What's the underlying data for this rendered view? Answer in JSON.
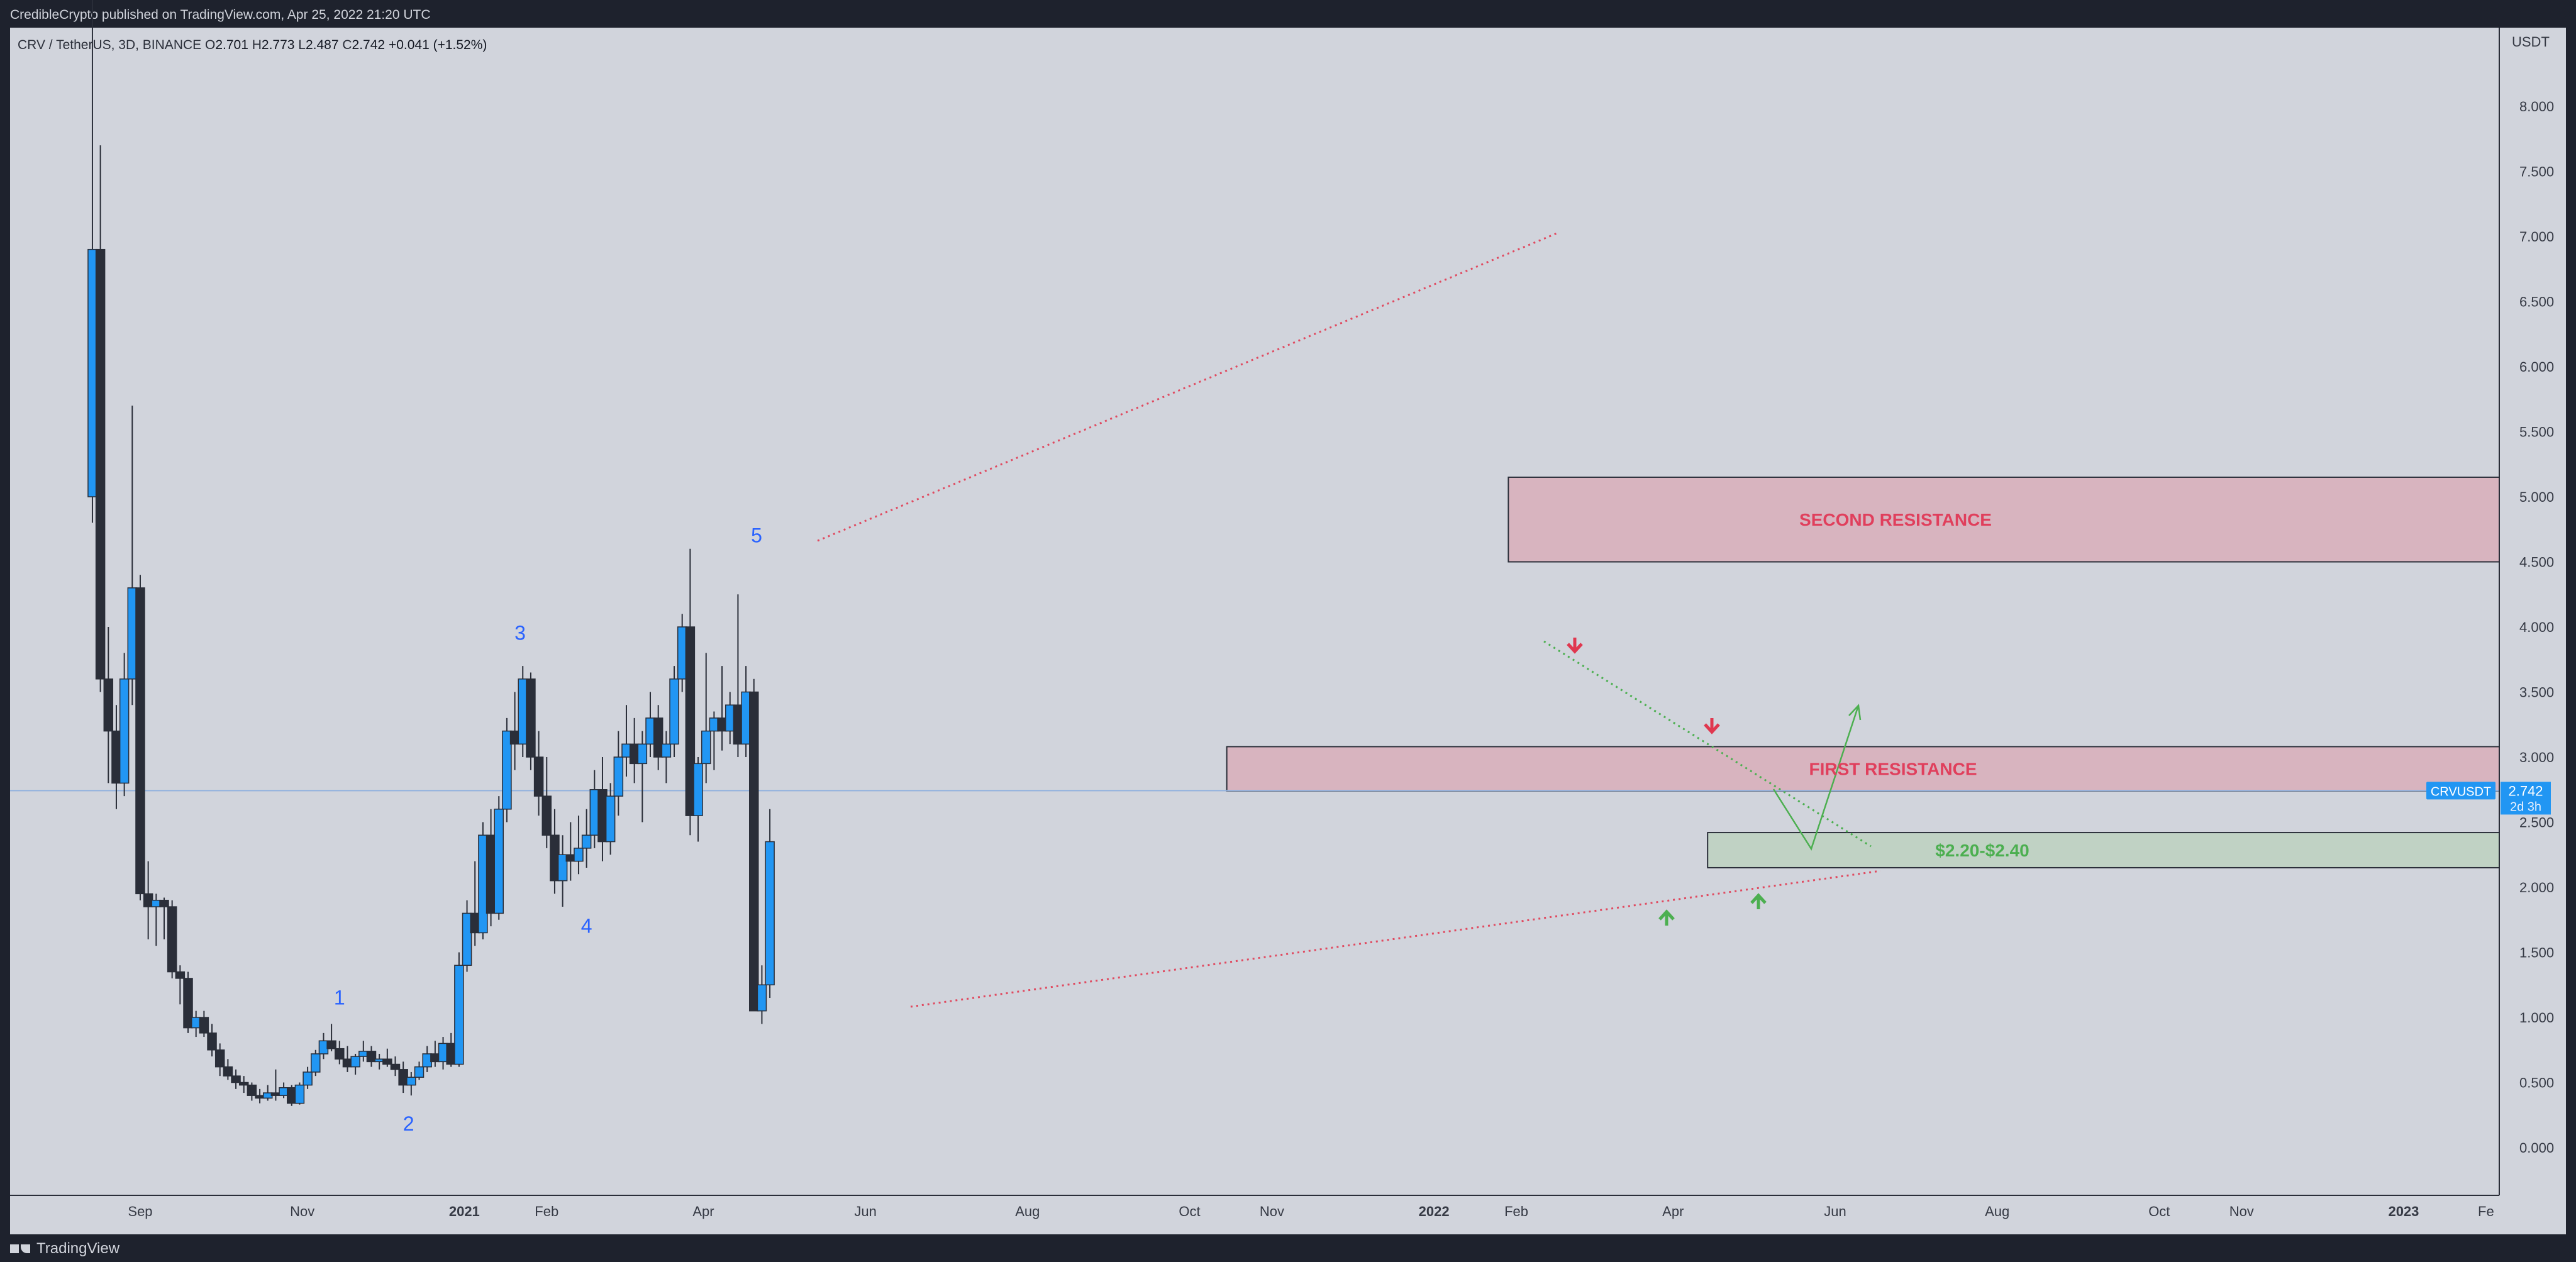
{
  "header": {
    "published_by": "CredibleCrypto published on TradingView.com, Apr 25, 2022 21:20 UTC"
  },
  "legend": {
    "symbol": "CRV / TetherUS, 3D, BINANCE",
    "o_label": "O",
    "o_value": "2.701",
    "h_label": "H",
    "h_value": "2.773",
    "l_label": "L",
    "l_value": "2.487",
    "c_label": "C",
    "c_value": "2.742",
    "change": "+0.041 (+1.52%)"
  },
  "price_scale": {
    "currency": "USDT",
    "ticker": "CRVUSDT",
    "last_price": "2.742",
    "countdown": "2d 3h"
  },
  "footer": {
    "brand": "TradingView"
  },
  "chart_data": {
    "type": "candlestick",
    "symbol": "CRVUSDT",
    "interval": "3D",
    "exchange": "BINANCE",
    "y_ticks": [
      "0.000",
      "0.500",
      "1.000",
      "1.500",
      "2.000",
      "2.500",
      "3.000",
      "3.500",
      "4.000",
      "4.500",
      "5.000",
      "5.500",
      "6.000",
      "6.500",
      "7.000",
      "7.500",
      "8.000"
    ],
    "ylim": [
      -0.6,
      9.0
    ],
    "x_ticks": [
      {
        "label": "Sep",
        "date": "2020-09-01",
        "bold": false
      },
      {
        "label": "Nov",
        "date": "2020-11-01",
        "bold": false
      },
      {
        "label": "2021",
        "date": "2021-01-01",
        "bold": true
      },
      {
        "label": "Feb",
        "date": "2021-02-01",
        "bold": false
      },
      {
        "label": "Apr",
        "date": "2021-04-01",
        "bold": false
      },
      {
        "label": "Jun",
        "date": "2021-06-01",
        "bold": false
      },
      {
        "label": "Aug",
        "date": "2021-08-01",
        "bold": false
      },
      {
        "label": "Oct",
        "date": "2021-10-01",
        "bold": false
      },
      {
        "label": "Nov",
        "date": "2021-11-01",
        "bold": false
      },
      {
        "label": "2022",
        "date": "2022-01-01",
        "bold": true
      },
      {
        "label": "Feb",
        "date": "2022-02-01",
        "bold": false
      },
      {
        "label": "Apr",
        "date": "2022-04-01",
        "bold": false
      },
      {
        "label": "Jun",
        "date": "2022-06-01",
        "bold": false
      },
      {
        "label": "Aug",
        "date": "2022-08-01",
        "bold": false
      },
      {
        "label": "Oct",
        "date": "2022-10-01",
        "bold": false
      },
      {
        "label": "Nov",
        "date": "2022-11-01",
        "bold": false
      },
      {
        "label": "2023",
        "date": "2023-01-01",
        "bold": true
      },
      {
        "label": "Fe",
        "date": "2023-02-01",
        "bold": false
      }
    ],
    "xlim": [
      "2020-07-14",
      "2023-02-06"
    ],
    "last_price": 2.742,
    "candles": [
      {
        "date": "2020-08-14",
        "open": 5.0,
        "high": 9.8,
        "low": 4.8,
        "close": 6.9
      },
      {
        "date": "2020-08-17",
        "open": 6.9,
        "high": 7.7,
        "low": 3.5,
        "close": 3.6
      },
      {
        "date": "2020-08-20",
        "open": 3.6,
        "high": 4.0,
        "low": 2.8,
        "close": 3.2
      },
      {
        "date": "2020-08-23",
        "open": 3.2,
        "high": 3.4,
        "low": 2.6,
        "close": 2.8
      },
      {
        "date": "2020-08-26",
        "open": 2.8,
        "high": 3.8,
        "low": 2.7,
        "close": 3.6
      },
      {
        "date": "2020-08-29",
        "open": 3.6,
        "high": 5.7,
        "low": 3.4,
        "close": 4.3
      },
      {
        "date": "2020-09-01",
        "open": 4.3,
        "high": 4.4,
        "low": 1.9,
        "close": 1.95
      },
      {
        "date": "2020-09-04",
        "open": 1.95,
        "high": 2.2,
        "low": 1.6,
        "close": 1.85
      },
      {
        "date": "2020-09-07",
        "open": 1.85,
        "high": 1.95,
        "low": 1.55,
        "close": 1.9
      },
      {
        "date": "2020-09-10",
        "open": 1.9,
        "high": 1.92,
        "low": 1.6,
        "close": 1.85
      },
      {
        "date": "2020-09-13",
        "open": 1.85,
        "high": 1.9,
        "low": 1.3,
        "close": 1.35
      },
      {
        "date": "2020-09-16",
        "open": 1.35,
        "high": 1.4,
        "low": 1.1,
        "close": 1.3
      },
      {
        "date": "2020-09-19",
        "open": 1.3,
        "high": 1.35,
        "low": 0.88,
        "close": 0.92
      },
      {
        "date": "2020-09-22",
        "open": 0.92,
        "high": 1.05,
        "low": 0.85,
        "close": 1.0
      },
      {
        "date": "2020-09-25",
        "open": 1.0,
        "high": 1.05,
        "low": 0.85,
        "close": 0.88
      },
      {
        "date": "2020-09-28",
        "open": 0.88,
        "high": 0.95,
        "low": 0.7,
        "close": 0.75
      },
      {
        "date": "2020-10-01",
        "open": 0.75,
        "high": 0.8,
        "low": 0.55,
        "close": 0.62
      },
      {
        "date": "2020-10-04",
        "open": 0.62,
        "high": 0.68,
        "low": 0.52,
        "close": 0.55
      },
      {
        "date": "2020-10-07",
        "open": 0.55,
        "high": 0.6,
        "low": 0.45,
        "close": 0.5
      },
      {
        "date": "2020-10-10",
        "open": 0.5,
        "high": 0.55,
        "low": 0.42,
        "close": 0.48
      },
      {
        "date": "2020-10-13",
        "open": 0.48,
        "high": 0.5,
        "low": 0.36,
        "close": 0.4
      },
      {
        "date": "2020-10-16",
        "open": 0.4,
        "high": 0.45,
        "low": 0.34,
        "close": 0.38
      },
      {
        "date": "2020-10-19",
        "open": 0.38,
        "high": 0.48,
        "low": 0.36,
        "close": 0.42
      },
      {
        "date": "2020-10-22",
        "open": 0.42,
        "high": 0.6,
        "low": 0.36,
        "close": 0.4
      },
      {
        "date": "2020-10-25",
        "open": 0.4,
        "high": 0.5,
        "low": 0.38,
        "close": 0.46
      },
      {
        "date": "2020-10-28",
        "open": 0.46,
        "high": 0.48,
        "low": 0.32,
        "close": 0.34
      },
      {
        "date": "2020-10-31",
        "open": 0.34,
        "high": 0.5,
        "low": 0.33,
        "close": 0.48
      },
      {
        "date": "2020-11-03",
        "open": 0.48,
        "high": 0.62,
        "low": 0.45,
        "close": 0.58
      },
      {
        "date": "2020-11-06",
        "open": 0.58,
        "high": 0.75,
        "low": 0.55,
        "close": 0.72
      },
      {
        "date": "2020-11-09",
        "open": 0.72,
        "high": 0.88,
        "low": 0.68,
        "close": 0.82
      },
      {
        "date": "2020-11-12",
        "open": 0.82,
        "high": 0.95,
        "low": 0.74,
        "close": 0.76
      },
      {
        "date": "2020-11-15",
        "open": 0.76,
        "high": 0.82,
        "low": 0.64,
        "close": 0.68
      },
      {
        "date": "2020-11-18",
        "open": 0.68,
        "high": 0.78,
        "low": 0.58,
        "close": 0.62
      },
      {
        "date": "2020-11-21",
        "open": 0.62,
        "high": 0.72,
        "low": 0.56,
        "close": 0.7
      },
      {
        "date": "2020-11-24",
        "open": 0.7,
        "high": 0.82,
        "low": 0.66,
        "close": 0.74
      },
      {
        "date": "2020-11-27",
        "open": 0.74,
        "high": 0.78,
        "low": 0.62,
        "close": 0.66
      },
      {
        "date": "2020-11-30",
        "open": 0.66,
        "high": 0.72,
        "low": 0.6,
        "close": 0.68
      },
      {
        "date": "2020-12-03",
        "open": 0.68,
        "high": 0.76,
        "low": 0.62,
        "close": 0.64
      },
      {
        "date": "2020-12-06",
        "open": 0.64,
        "high": 0.7,
        "low": 0.55,
        "close": 0.6
      },
      {
        "date": "2020-12-09",
        "open": 0.6,
        "high": 0.66,
        "low": 0.42,
        "close": 0.48
      },
      {
        "date": "2020-12-12",
        "open": 0.48,
        "high": 0.58,
        "low": 0.4,
        "close": 0.54
      },
      {
        "date": "2020-12-15",
        "open": 0.54,
        "high": 0.66,
        "low": 0.52,
        "close": 0.62
      },
      {
        "date": "2020-12-18",
        "open": 0.62,
        "high": 0.78,
        "low": 0.58,
        "close": 0.72
      },
      {
        "date": "2020-12-21",
        "open": 0.72,
        "high": 0.82,
        "low": 0.62,
        "close": 0.66
      },
      {
        "date": "2020-12-24",
        "open": 0.66,
        "high": 0.85,
        "low": 0.6,
        "close": 0.8
      },
      {
        "date": "2020-12-27",
        "open": 0.8,
        "high": 0.88,
        "low": 0.62,
        "close": 0.64
      },
      {
        "date": "2020-12-30",
        "open": 0.64,
        "high": 1.5,
        "low": 0.62,
        "close": 1.4
      },
      {
        "date": "2021-01-02",
        "open": 1.4,
        "high": 1.9,
        "low": 1.35,
        "close": 1.8
      },
      {
        "date": "2021-01-05",
        "open": 1.8,
        "high": 2.2,
        "low": 1.55,
        "close": 1.65
      },
      {
        "date": "2021-01-08",
        "open": 1.65,
        "high": 2.5,
        "low": 1.6,
        "close": 2.4
      },
      {
        "date": "2021-01-11",
        "open": 2.4,
        "high": 2.6,
        "low": 1.7,
        "close": 1.8
      },
      {
        "date": "2021-01-14",
        "open": 1.8,
        "high": 2.7,
        "low": 1.75,
        "close": 2.6
      },
      {
        "date": "2021-01-17",
        "open": 2.6,
        "high": 3.3,
        "low": 2.5,
        "close": 3.2
      },
      {
        "date": "2021-01-20",
        "open": 3.2,
        "high": 3.5,
        "low": 2.9,
        "close": 3.1
      },
      {
        "date": "2021-01-23",
        "open": 3.1,
        "high": 3.7,
        "low": 3.0,
        "close": 3.6
      },
      {
        "date": "2021-01-26",
        "open": 3.6,
        "high": 3.65,
        "low": 2.9,
        "close": 3.0
      },
      {
        "date": "2021-01-29",
        "open": 3.0,
        "high": 3.2,
        "low": 2.55,
        "close": 2.7
      },
      {
        "date": "2021-02-01",
        "open": 2.7,
        "high": 3.0,
        "low": 2.3,
        "close": 2.4
      },
      {
        "date": "2021-02-04",
        "open": 2.4,
        "high": 2.6,
        "low": 1.95,
        "close": 2.05
      },
      {
        "date": "2021-02-07",
        "open": 2.05,
        "high": 2.4,
        "low": 1.85,
        "close": 2.25
      },
      {
        "date": "2021-02-10",
        "open": 2.25,
        "high": 2.5,
        "low": 2.05,
        "close": 2.2
      },
      {
        "date": "2021-02-13",
        "open": 2.2,
        "high": 2.55,
        "low": 2.1,
        "close": 2.3
      },
      {
        "date": "2021-02-16",
        "open": 2.3,
        "high": 2.6,
        "low": 2.15,
        "close": 2.4
      },
      {
        "date": "2021-02-19",
        "open": 2.4,
        "high": 2.9,
        "low": 2.3,
        "close": 2.75
      },
      {
        "date": "2021-02-22",
        "open": 2.75,
        "high": 3.0,
        "low": 2.2,
        "close": 2.35
      },
      {
        "date": "2021-02-25",
        "open": 2.35,
        "high": 2.8,
        "low": 2.25,
        "close": 2.7
      },
      {
        "date": "2021-02-28",
        "open": 2.7,
        "high": 3.2,
        "low": 2.55,
        "close": 3.0
      },
      {
        "date": "2021-03-03",
        "open": 3.0,
        "high": 3.4,
        "low": 2.85,
        "close": 3.1
      },
      {
        "date": "2021-03-06",
        "open": 3.1,
        "high": 3.3,
        "low": 2.8,
        "close": 2.95
      },
      {
        "date": "2021-03-09",
        "open": 2.95,
        "high": 3.2,
        "low": 2.5,
        "close": 3.1
      },
      {
        "date": "2021-03-12",
        "open": 3.1,
        "high": 3.5,
        "low": 3.0,
        "close": 3.3
      },
      {
        "date": "2021-03-15",
        "open": 3.3,
        "high": 3.4,
        "low": 2.9,
        "close": 3.0
      },
      {
        "date": "2021-03-18",
        "open": 3.0,
        "high": 3.2,
        "low": 2.8,
        "close": 3.1
      },
      {
        "date": "2021-03-21",
        "open": 3.1,
        "high": 3.7,
        "low": 3.0,
        "close": 3.6
      },
      {
        "date": "2021-03-24",
        "open": 3.6,
        "high": 4.1,
        "low": 3.5,
        "close": 4.0
      },
      {
        "date": "2021-03-27",
        "open": 4.0,
        "high": 4.6,
        "low": 2.4,
        "close": 2.55
      },
      {
        "date": "2021-03-30",
        "open": 2.55,
        "high": 3.0,
        "low": 2.35,
        "close": 2.95
      },
      {
        "date": "2021-04-02",
        "open": 2.95,
        "high": 3.8,
        "low": 2.8,
        "close": 3.2
      },
      {
        "date": "2021-04-05",
        "open": 3.2,
        "high": 3.35,
        "low": 2.9,
        "close": 3.3
      },
      {
        "date": "2021-04-08",
        "open": 3.3,
        "high": 3.7,
        "low": 3.05,
        "close": 3.2
      },
      {
        "date": "2021-04-11",
        "open": 3.2,
        "high": 3.5,
        "low": 3.1,
        "close": 3.4
      },
      {
        "date": "2021-04-14",
        "open": 3.4,
        "high": 4.25,
        "low": 3.0,
        "close": 3.1
      },
      {
        "date": "2021-04-17",
        "open": 3.1,
        "high": 3.7,
        "low": 3.0,
        "close": 3.5
      },
      {
        "date": "2021-04-20",
        "open": 3.5,
        "high": 3.6,
        "low": 1.05,
        "close": 1.05
      },
      {
        "date": "2021-04-23",
        "open": 1.05,
        "high": 1.4,
        "low": 0.95,
        "close": 1.25
      },
      {
        "date": "2021-04-26",
        "open": 1.25,
        "high": 2.6,
        "low": 1.15,
        "close": 2.35
      }
    ],
    "zones": [
      {
        "label": "SECOND RESISTANCE",
        "from": "2022-01-29",
        "to": "2023-02-06",
        "low": 4.5,
        "high": 5.15,
        "fill": "#d8b4bf",
        "text_color": "#e03f5c"
      },
      {
        "label": "FIRST RESISTANCE",
        "from": "2021-10-15",
        "to": "2023-02-06",
        "low": 2.74,
        "high": 3.08,
        "fill": "#d8b4bf",
        "text_color": "#e03f5c"
      },
      {
        "label": "$2.20-$2.40",
        "from": "2022-04-14",
        "to": "2023-02-06",
        "low": 2.15,
        "high": 2.42,
        "fill": "#c0d2c4",
        "text_color": "#4caf50"
      }
    ],
    "annotations": [
      {
        "text": "1",
        "date": "2020-11-15",
        "price": 1.1
      },
      {
        "text": "2",
        "date": "2020-12-11",
        "price": 0.13
      },
      {
        "text": "3",
        "date": "2021-01-22",
        "price": 3.9
      },
      {
        "text": "4",
        "date": "2021-02-16",
        "price": 1.65
      },
      {
        "text": "5",
        "date": "2021-04-21",
        "price": 4.65
      }
    ]
  }
}
